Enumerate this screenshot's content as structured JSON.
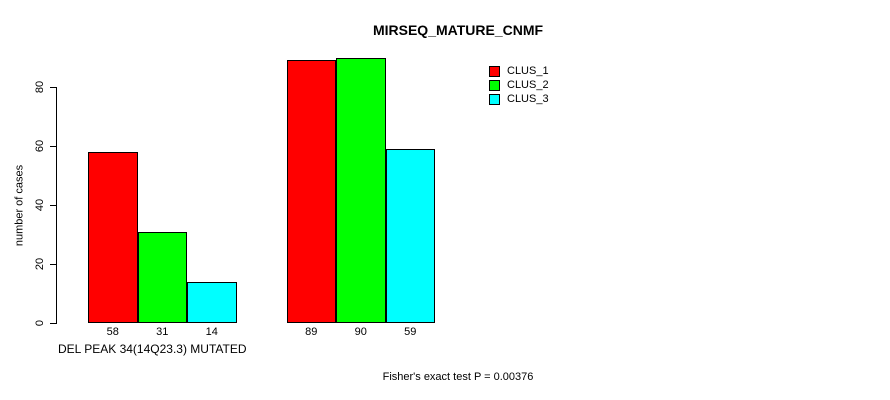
{
  "title": "MIRSEQ_MATURE_CNMF",
  "footer": "Fisher's exact test P = 0.00376",
  "chart_data": {
    "type": "bar",
    "title": "MIRSEQ_MATURE_CNMF",
    "xlabel": "DEL PEAK 34(14Q23.3) MUTATED",
    "ylabel": "number of cases",
    "ylim": [
      0,
      90
    ],
    "yticks": [
      0,
      20,
      40,
      60,
      80
    ],
    "grid": false,
    "legend_position": "top-right",
    "bar_value_labels": true,
    "categories": [
      "group-1",
      "group-2"
    ],
    "series": [
      {
        "name": "CLUS_1",
        "color": "#FF0000",
        "values": [
          58,
          89
        ]
      },
      {
        "name": "CLUS_2",
        "color": "#00FF00",
        "values": [
          31,
          90
        ]
      },
      {
        "name": "CLUS_3",
        "color": "#00FFFF",
        "values": [
          14,
          59
        ]
      }
    ],
    "annotation": "Fisher's exact test P = 0.00376"
  }
}
